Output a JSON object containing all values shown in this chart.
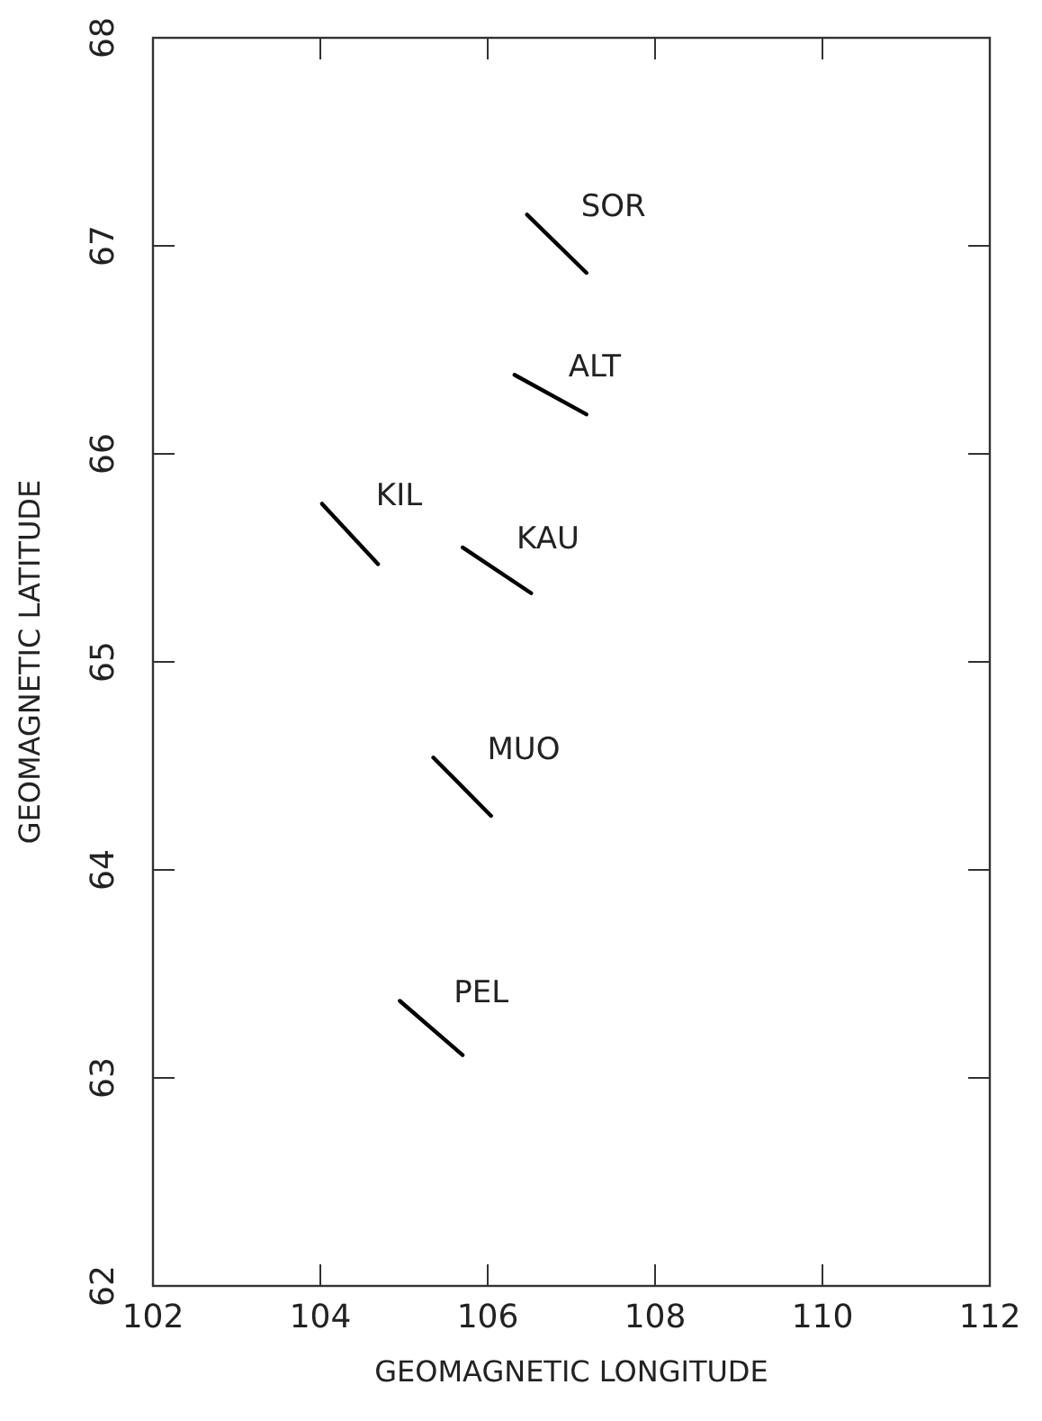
{
  "chart_data": {
    "type": "line",
    "xlabel": "GEOMAGNETIC LONGITUDE",
    "ylabel": "GEOMAGNETIC LATITUDE",
    "xlim": [
      102,
      112
    ],
    "ylim": [
      62,
      68
    ],
    "xticks": [
      102,
      104,
      106,
      108,
      110,
      112
    ],
    "yticks": [
      62,
      63,
      64,
      65,
      66,
      67,
      68
    ],
    "grid": false,
    "marker": "none",
    "line_style": "solid",
    "series": [
      {
        "name": "SOR",
        "color": "#000000",
        "x": [
          106.47,
          107.18
        ],
        "values": [
          67.15,
          66.87
        ]
      },
      {
        "name": "ALT",
        "color": "#000000",
        "x": [
          106.32,
          107.18
        ],
        "values": [
          66.38,
          66.19
        ]
      },
      {
        "name": "KIL",
        "color": "#000000",
        "x": [
          104.02,
          104.69
        ],
        "values": [
          65.76,
          65.47
        ]
      },
      {
        "name": "KAU",
        "color": "#000000",
        "x": [
          105.7,
          106.52
        ],
        "values": [
          65.55,
          65.33
        ]
      },
      {
        "name": "MUO",
        "color": "#000000",
        "x": [
          105.35,
          106.04
        ],
        "values": [
          64.54,
          64.26
        ]
      },
      {
        "name": "PEL",
        "color": "#000000",
        "x": [
          104.95,
          105.7
        ],
        "values": [
          63.37,
          63.11
        ]
      }
    ]
  }
}
